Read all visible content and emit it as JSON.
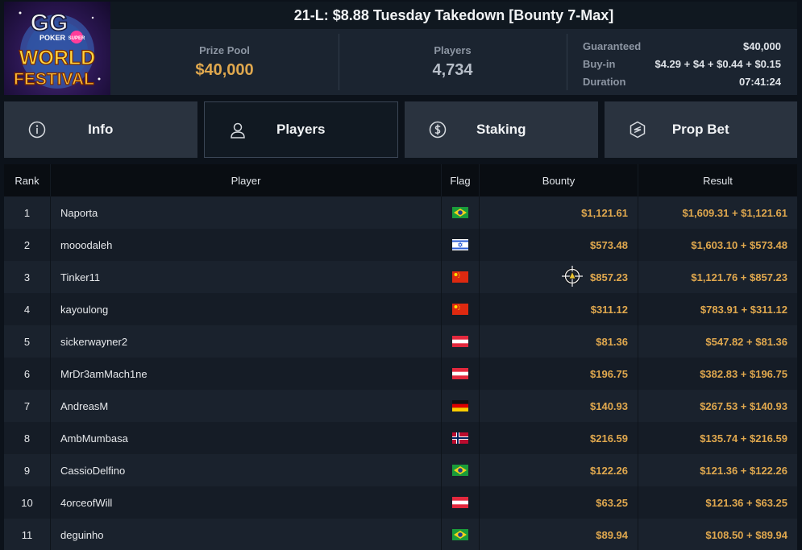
{
  "logo": {
    "brand": "GG",
    "sub": "POKER",
    "super": "SUPER",
    "line1": "WORLD",
    "line2": "FESTIVAL"
  },
  "title": "21-L: $8.88 Tuesday Takedown [Bounty 7-Max]",
  "stats": {
    "prize_pool_label": "Prize Pool",
    "prize_pool_value": "$40,000",
    "players_label": "Players",
    "players_value": "4,734",
    "details": [
      {
        "label": "Guaranteed",
        "value": "$40,000"
      },
      {
        "label": "Buy-in",
        "value": "$4.29 + $4 + $0.44 + $0.15"
      },
      {
        "label": "Duration",
        "value": "07:41:24"
      }
    ]
  },
  "tabs": [
    {
      "label": "Info",
      "icon": "info-icon"
    },
    {
      "label": "Players",
      "icon": "user-icon",
      "active": true
    },
    {
      "label": "Staking",
      "icon": "staking-coin-icon"
    },
    {
      "label": "Prop Bet",
      "icon": "prop-bet-icon"
    }
  ],
  "table": {
    "headers": {
      "rank": "Rank",
      "player": "Player",
      "flag": "Flag",
      "bounty": "Bounty",
      "result": "Result"
    },
    "rows": [
      {
        "rank": "1",
        "player": "Naporta",
        "flag": "brazil-flag-icon",
        "bounty": "$1,121.61",
        "result": "$1,609.31 + $1,121.61"
      },
      {
        "rank": "2",
        "player": "mooodaleh",
        "flag": "israel-flag-icon",
        "bounty": "$573.48",
        "result": "$1,603.10 + $573.48"
      },
      {
        "rank": "3",
        "player": "Tinker11",
        "flag": "china-flag-icon",
        "bounty": "$857.23",
        "result": "$1,121.76 + $857.23"
      },
      {
        "rank": "4",
        "player": "kayoulong",
        "flag": "china-flag-icon",
        "bounty": "$311.12",
        "result": "$783.91 + $311.12"
      },
      {
        "rank": "5",
        "player": "sickerwayner2",
        "flag": "austria-flag-icon",
        "bounty": "$81.36",
        "result": "$547.82 + $81.36"
      },
      {
        "rank": "6",
        "player": "MrDr3amMach1ne",
        "flag": "austria-flag-icon",
        "bounty": "$196.75",
        "result": "$382.83 + $196.75"
      },
      {
        "rank": "7",
        "player": "AndreasM",
        "flag": "germany-flag-icon",
        "bounty": "$140.93",
        "result": "$267.53 + $140.93"
      },
      {
        "rank": "8",
        "player": "AmbMumbasa",
        "flag": "norway-flag-icon",
        "bounty": "$216.59",
        "result": "$135.74 + $216.59"
      },
      {
        "rank": "9",
        "player": "CassioDelfino",
        "flag": "brazil-flag-icon",
        "bounty": "$122.26",
        "result": "$121.36 + $122.26"
      },
      {
        "rank": "10",
        "player": "4orceofWill",
        "flag": "austria-flag-icon",
        "bounty": "$63.25",
        "result": "$121.36 + $63.25"
      },
      {
        "rank": "11",
        "player": "deguinho",
        "flag": "brazil-flag-icon",
        "bounty": "$89.94",
        "result": "$108.50 + $89.94"
      }
    ]
  },
  "colors": {
    "accent_gold": "#e0a84e",
    "background": "#0c121a",
    "panel": "#1b2430"
  }
}
